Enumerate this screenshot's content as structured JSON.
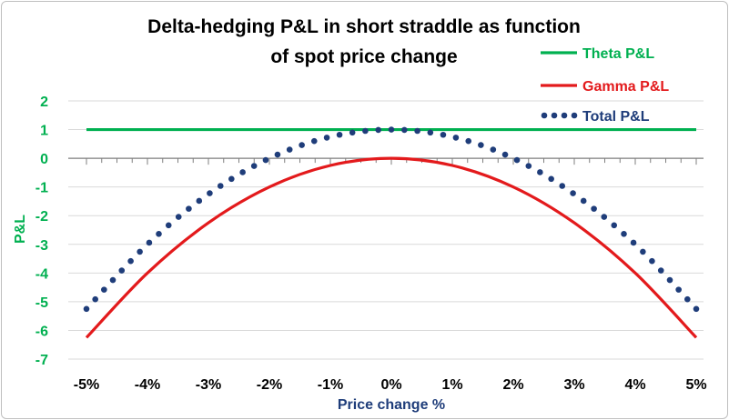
{
  "chart_data": {
    "type": "line",
    "title_line1": "Delta-hedging P&L in short straddle as function",
    "title_line2": "of spot price change",
    "xlabel": "Price change %",
    "ylabel": "P&L",
    "x_tick_labels": [
      "-5%",
      "-4%",
      "-3%",
      "-2%",
      "-1%",
      "0%",
      "1%",
      "2%",
      "3%",
      "4%",
      "5%"
    ],
    "y_tick_labels": [
      "2",
      "1",
      "0",
      "-1",
      "-2",
      "-3",
      "-4",
      "-5",
      "-6",
      "-7"
    ],
    "xlim": [
      -5,
      5
    ],
    "ylim": [
      -7,
      2
    ],
    "grid": "horizontal",
    "legend_position": "top-right",
    "series": [
      {
        "name": "Theta P&L",
        "color": "#00b050",
        "style": "solid",
        "x": [
          -5,
          -4,
          -3,
          -2,
          -1,
          0,
          1,
          2,
          3,
          4,
          5
        ],
        "values": [
          1,
          1,
          1,
          1,
          1,
          1,
          1,
          1,
          1,
          1,
          1
        ]
      },
      {
        "name": "Gamma P&L",
        "color": "#e31a1c",
        "style": "solid",
        "x": [
          -5,
          -4,
          -3,
          -2,
          -1,
          0,
          1,
          2,
          3,
          4,
          5
        ],
        "values": [
          -6.25,
          -4.0,
          -2.25,
          -1.0,
          -0.25,
          0,
          -0.25,
          -1.0,
          -2.25,
          -4.0,
          -6.25
        ]
      },
      {
        "name": "Total P&L",
        "color": "#1f3d7a",
        "style": "dotted",
        "x": [
          -5,
          -4,
          -3,
          -2,
          -1,
          0,
          1,
          2,
          3,
          4,
          5
        ],
        "values": [
          -5.25,
          -3.0,
          -1.25,
          0.0,
          0.75,
          1.0,
          0.75,
          0.0,
          -1.25,
          -3.0,
          -5.25
        ]
      }
    ],
    "colors": {
      "axis_title_y": "#00b050",
      "axis_title_x": "#1f3d7a",
      "y_ticks": "#00b050",
      "x_ticks": "#000000",
      "grid": "#d9d9d9",
      "axis_line": "#7f7f7f"
    }
  }
}
